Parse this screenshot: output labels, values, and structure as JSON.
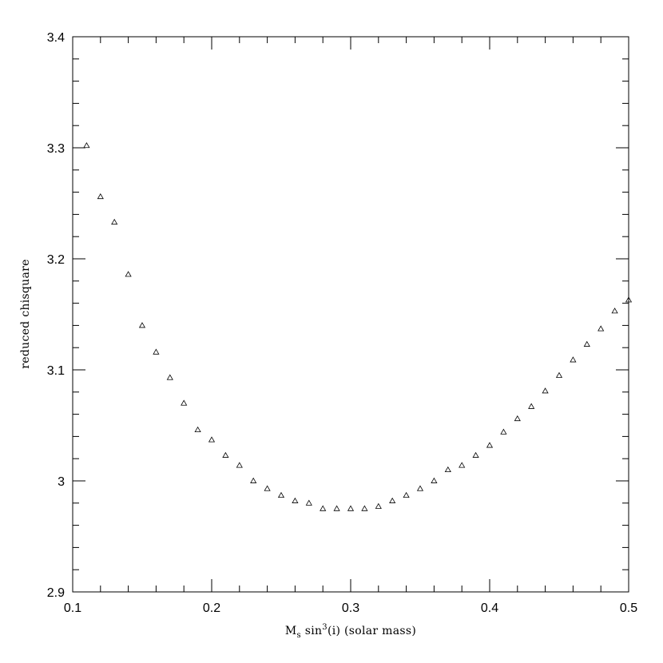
{
  "chart_data": {
    "type": "scatter",
    "marker": "triangle-open",
    "color": "#000000",
    "xlabel_parts": {
      "M": "M",
      "sub": "s",
      "sin": " sin",
      "sup": "3",
      "rest": "(i) (solar mass)"
    },
    "ylabel": "reduced chisquare",
    "xlim": [
      0.1,
      0.5
    ],
    "ylim": [
      2.9,
      3.4
    ],
    "x_major_ticks": [
      0.1,
      0.2,
      0.3,
      0.4,
      0.5
    ],
    "x_tick_labels": [
      "0.1",
      "0.2",
      "0.3",
      "0.4",
      "0.5"
    ],
    "y_major_ticks": [
      2.9,
      3.0,
      3.1,
      3.2,
      3.3,
      3.4
    ],
    "y_tick_labels": [
      "2.9",
      "3",
      "3.1",
      "3.2",
      "3.3",
      "3.4"
    ],
    "grid": false,
    "x": [
      0.11,
      0.12,
      0.13,
      0.14,
      0.15,
      0.16,
      0.17,
      0.18,
      0.19,
      0.2,
      0.21,
      0.22,
      0.23,
      0.24,
      0.25,
      0.26,
      0.27,
      0.28,
      0.29,
      0.3,
      0.31,
      0.32,
      0.33,
      0.34,
      0.35,
      0.36,
      0.37,
      0.38,
      0.39,
      0.4,
      0.41,
      0.42,
      0.43,
      0.44,
      0.45,
      0.46,
      0.47,
      0.48,
      0.49,
      0.5
    ],
    "y": [
      3.302,
      3.256,
      3.233,
      3.186,
      3.14,
      3.116,
      3.093,
      3.07,
      3.046,
      3.037,
      3.023,
      3.014,
      3.0,
      2.993,
      2.987,
      2.982,
      2.98,
      2.975,
      2.975,
      2.975,
      2.975,
      2.977,
      2.982,
      2.987,
      2.993,
      3.0,
      3.01,
      3.014,
      3.023,
      3.032,
      3.044,
      3.056,
      3.067,
      3.081,
      3.095,
      3.109,
      3.123,
      3.137,
      3.153,
      3.163
    ]
  }
}
